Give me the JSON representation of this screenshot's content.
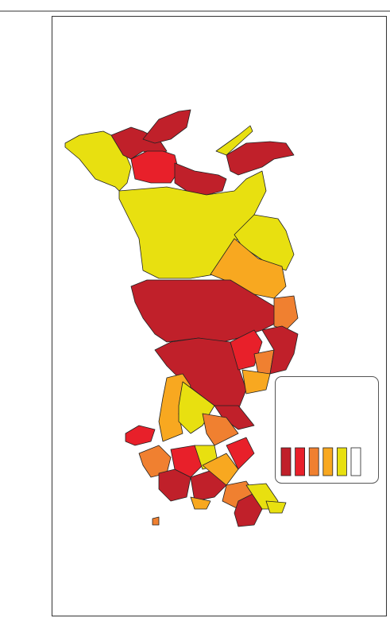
{
  "legend": {
    "colors": [
      "#c0202a",
      "#e8202a",
      "#f08030",
      "#f8a820",
      "#e8e010",
      "#ffffff"
    ]
  }
}
